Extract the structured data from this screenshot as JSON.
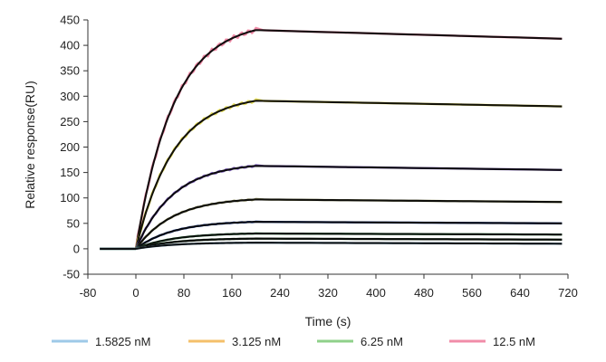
{
  "chart_data": {
    "type": "line",
    "xlabel": "Time (s)",
    "ylabel": "Relative response(RU)",
    "xlim": [
      -80,
      720
    ],
    "ylim": [
      -50,
      450
    ],
    "xticks": [
      -80,
      0,
      80,
      160,
      240,
      320,
      400,
      480,
      560,
      640,
      720
    ],
    "yticks": [
      -50,
      0,
      50,
      100,
      150,
      200,
      250,
      300,
      350,
      400,
      450
    ],
    "xtick_labels": [
      "-80",
      "0",
      "80",
      "160",
      "240",
      "320",
      "400",
      "480",
      "560",
      "640",
      "720"
    ],
    "ytick_labels": [
      "-50",
      "0",
      "50",
      "100",
      "150",
      "200",
      "250",
      "300",
      "350",
      "400",
      "450"
    ],
    "grid": false,
    "legend_position": "bottom",
    "association_end": 200,
    "legend": [
      {
        "name": "1.5825 nM",
        "color": "#9ec9e8"
      },
      {
        "name": "3.125 nM",
        "color": "#f4c06a"
      },
      {
        "name": "6.25 nM",
        "color": "#8fd08a"
      },
      {
        "name": "12.5 nM",
        "color": "#f08ca8"
      }
    ],
    "series": [
      {
        "plateau": 430,
        "end": 413,
        "color": "#f08ca8"
      },
      {
        "plateau": 291,
        "end": 280,
        "color": "#e8e060"
      },
      {
        "plateau": 163,
        "end": 155,
        "color": "#8a6cc8"
      },
      {
        "plateau": 97,
        "end": 92,
        "color": "#a0a070"
      },
      {
        "plateau": 53,
        "end": 50,
        "color": "#4060b0"
      },
      {
        "plateau": 30,
        "end": 28,
        "color": "#60b070"
      },
      {
        "plateau": 20,
        "end": 18,
        "color": "#608060"
      },
      {
        "plateau": 12,
        "end": 10,
        "color": "#9ec9e8"
      }
    ]
  }
}
